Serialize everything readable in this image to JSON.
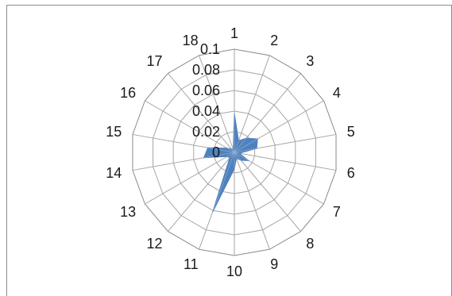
{
  "chart_data": {
    "type": "radar",
    "title": "",
    "categories": [
      "1",
      "2",
      "3",
      "4",
      "5",
      "6",
      "7",
      "8",
      "9",
      "10",
      "11",
      "12",
      "13",
      "14",
      "15",
      "16",
      "17",
      "18"
    ],
    "series": [
      {
        "values": [
          0.038,
          0.012,
          0.018,
          0.026,
          0.022,
          0.005,
          0.016,
          0.01,
          0.006,
          0.016,
          0.062,
          0.007,
          0.008,
          0.03,
          0.026,
          0.008,
          0.004,
          0.003
        ],
        "color": "#4f81bd"
      }
    ],
    "rlim": [
      0,
      0.1
    ],
    "tick_labels": [
      "0",
      "0.02",
      "0.04",
      "0.06",
      "0.08",
      "0.1"
    ],
    "grid": true,
    "legend": "none"
  }
}
